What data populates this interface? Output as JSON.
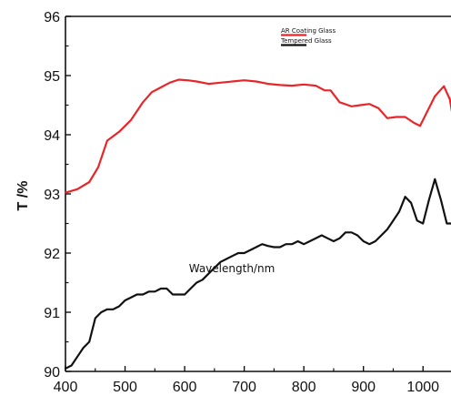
{
  "chart_data": {
    "type": "line",
    "xlabel": "Wavelength/nm",
    "ylabel": "T /%",
    "xlim": [
      400,
      1050
    ],
    "ylim": [
      90,
      96
    ],
    "xticks": [
      400,
      500,
      600,
      700,
      800,
      900,
      1000
    ],
    "yticks": [
      90,
      91,
      92,
      93,
      94,
      95,
      96
    ],
    "legend_position": "top-center",
    "grid": false,
    "series": [
      {
        "name": "AR Coating Glass",
        "color": "#e8262a",
        "x": [
          400,
          420,
          440,
          455,
          470,
          490,
          510,
          530,
          545,
          560,
          575,
          590,
          605,
          620,
          640,
          660,
          680,
          700,
          720,
          740,
          760,
          780,
          800,
          820,
          835,
          845,
          860,
          880,
          895,
          910,
          925,
          940,
          955,
          970,
          985,
          995,
          1005,
          1020,
          1035,
          1045,
          1050
        ],
        "y": [
          93.02,
          93.08,
          93.2,
          93.45,
          93.9,
          94.05,
          94.25,
          94.55,
          94.72,
          94.8,
          94.88,
          94.93,
          94.92,
          94.9,
          94.86,
          94.88,
          94.9,
          94.92,
          94.9,
          94.86,
          94.84,
          94.83,
          94.85,
          94.83,
          94.75,
          94.75,
          94.55,
          94.48,
          94.5,
          94.52,
          94.45,
          94.28,
          94.3,
          94.3,
          94.2,
          94.15,
          94.35,
          94.65,
          94.82,
          94.6,
          94.3
        ]
      },
      {
        "name": "Tempered Glass",
        "color": "#111111",
        "x": [
          400,
          410,
          420,
          430,
          440,
          450,
          460,
          470,
          480,
          490,
          500,
          510,
          520,
          530,
          540,
          550,
          560,
          570,
          580,
          590,
          600,
          610,
          620,
          630,
          640,
          650,
          660,
          670,
          680,
          690,
          700,
          710,
          720,
          730,
          740,
          750,
          760,
          770,
          780,
          790,
          800,
          810,
          820,
          830,
          840,
          850,
          860,
          870,
          880,
          890,
          900,
          910,
          920,
          930,
          940,
          950,
          960,
          970,
          980,
          990,
          1000,
          1010,
          1020,
          1030,
          1040,
          1050
        ],
        "y": [
          90.05,
          90.1,
          90.25,
          90.4,
          90.5,
          90.9,
          91.0,
          91.05,
          91.05,
          91.1,
          91.2,
          91.25,
          91.3,
          91.3,
          91.35,
          91.35,
          91.4,
          91.4,
          91.3,
          91.3,
          91.3,
          91.4,
          91.5,
          91.55,
          91.65,
          91.75,
          91.85,
          91.9,
          91.95,
          92.0,
          92.0,
          92.05,
          92.1,
          92.15,
          92.12,
          92.1,
          92.1,
          92.15,
          92.15,
          92.2,
          92.15,
          92.2,
          92.25,
          92.3,
          92.25,
          92.2,
          92.25,
          92.35,
          92.35,
          92.3,
          92.2,
          92.15,
          92.2,
          92.3,
          92.4,
          92.55,
          92.7,
          92.95,
          92.85,
          92.55,
          92.5,
          92.9,
          93.25,
          92.9,
          92.5,
          92.5
        ]
      }
    ]
  }
}
